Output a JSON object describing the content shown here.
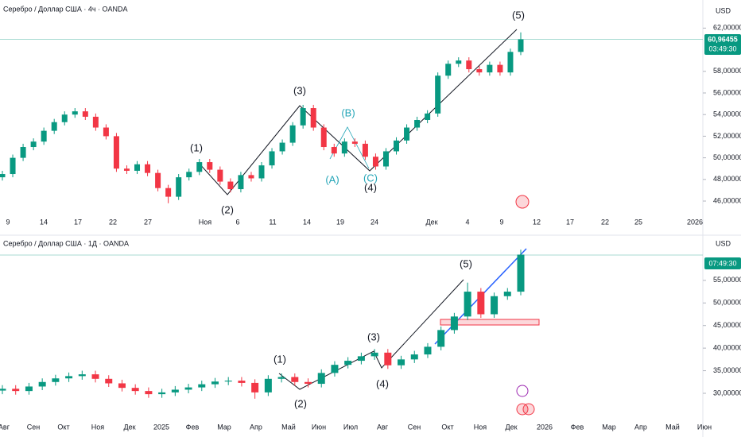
{
  "chart_data": [
    {
      "type": "candlestick",
      "title": "Серебро / Доллар США · 4ч · OANDA",
      "currency": "USD",
      "up_color": "#089981",
      "down_color": "#f23645",
      "open": [
        48.2,
        48.5,
        50,
        51,
        51.5,
        52.5,
        53.3,
        54,
        54.3,
        53.8,
        52.8,
        52,
        49,
        48.8,
        49.4,
        48.6,
        47.2,
        46.4,
        48.2,
        48.7,
        49.6,
        48.9,
        47.8,
        47.1,
        48.4,
        48.1,
        49.3,
        50.6,
        51.4,
        53,
        54.6,
        52.8,
        51,
        50.4,
        51.5,
        51.3,
        50.1,
        49.2,
        50.6,
        51.6,
        52.8,
        53.5,
        54.1,
        57.6,
        58.7,
        59,
        58.2,
        57.9,
        58.6,
        57.9,
        59.8
      ],
      "high": [
        48.8,
        50.3,
        51.3,
        51.8,
        52.8,
        53.6,
        54.3,
        54.6,
        54.6,
        54.1,
        53.1,
        52.3,
        49.3,
        49.7,
        49.7,
        48.9,
        47.5,
        48.5,
        49,
        49.9,
        49.9,
        49.2,
        48.1,
        48.7,
        48.7,
        49.6,
        50.9,
        51.7,
        53.3,
        54.9,
        54.9,
        53.1,
        51.3,
        51.8,
        51.8,
        51.6,
        50.4,
        50.9,
        51.9,
        53.1,
        53.8,
        54.4,
        57.9,
        59,
        59.3,
        59.3,
        58.5,
        58.9,
        58.9,
        60.1,
        61.6
      ],
      "low": [
        47.9,
        48.2,
        49.7,
        50.7,
        51.2,
        52.2,
        53,
        53.7,
        53.5,
        52.5,
        51.7,
        48.7,
        48.5,
        48.5,
        48.3,
        46.9,
        45.8,
        46.1,
        47.9,
        48.4,
        48.6,
        47.5,
        46.8,
        46.8,
        47.8,
        47.8,
        49,
        50.3,
        51.1,
        52.7,
        52.5,
        50.7,
        50.1,
        50.1,
        51,
        49.8,
        48.9,
        48.9,
        50.3,
        51.3,
        52.5,
        53.2,
        53.8,
        57.3,
        58.4,
        57.9,
        57.6,
        57.6,
        57.6,
        57.6,
        59.5
      ],
      "close": [
        48.5,
        50,
        51,
        51.5,
        52.5,
        53.3,
        54,
        54.3,
        53.8,
        52.8,
        52,
        49,
        48.8,
        49.4,
        48.6,
        47.2,
        46.4,
        48.2,
        48.7,
        49.6,
        48.9,
        47.8,
        47.1,
        48.4,
        48.1,
        49.3,
        50.6,
        51.4,
        53,
        54.6,
        52.8,
        51,
        50.4,
        51.5,
        51.3,
        50.1,
        49.2,
        50.6,
        51.6,
        52.8,
        53.5,
        54.1,
        57.6,
        58.7,
        59,
        58.2,
        57.9,
        58.6,
        57.9,
        59.8,
        60.96
      ],
      "ylim": [
        44.9,
        64.6
      ],
      "yticks": [
        {
          "value": 46,
          "label": "46,00000"
        },
        {
          "value": 48,
          "label": "48,00000"
        },
        {
          "value": 50,
          "label": "50,00000"
        },
        {
          "value": 52,
          "label": "52,00000"
        },
        {
          "value": 54,
          "label": "54,00000"
        },
        {
          "value": 56,
          "label": "56,00000"
        },
        {
          "value": 58,
          "label": "58,00000"
        },
        {
          "value": 62,
          "label": "62,00000"
        }
      ],
      "last_price": {
        "value": 60.96455,
        "label": "60,96455"
      },
      "countdown": "03:49:30",
      "x_labels": [
        "9",
        "14",
        "17",
        "22",
        "27",
        "Ноя",
        "6",
        "11",
        "14",
        "19",
        "24",
        "Дек",
        "4",
        "9",
        "12",
        "17",
        "22",
        "25",
        "2026"
      ],
      "annotations": [
        "(1)",
        "(2)",
        "(3)",
        "(4)",
        "(5)",
        "(A)",
        "(B)",
        "(C)"
      ]
    },
    {
      "type": "candlestick",
      "title": "Серебро / Доллар США · 1Д · OANDA",
      "currency": "USD",
      "up_color": "#089981",
      "down_color": "#f23645",
      "open": [
        30.6,
        31,
        30.5,
        31.5,
        32.5,
        33.3,
        33.8,
        34.2,
        33.2,
        32.2,
        31.2,
        30.5,
        29.8,
        30.2,
        30.8,
        31.3,
        32,
        32.6,
        32.8,
        32.3,
        30.2,
        33.2,
        33.6,
        32.5,
        32.1,
        34.5,
        36.3,
        37.2,
        38.2,
        39,
        36.2,
        37.5,
        38.6,
        40.3,
        44,
        47,
        52.5,
        47.5,
        51.5,
        52.5
      ],
      "high": [
        31.8,
        31.8,
        32.3,
        33.3,
        34.1,
        34.6,
        35,
        35,
        34,
        33,
        32,
        31.3,
        31,
        31.6,
        32.1,
        32.8,
        33.4,
        33.6,
        33.6,
        33.1,
        34,
        34.4,
        34.4,
        33.3,
        35.3,
        37.1,
        38,
        39,
        39.8,
        39.8,
        38.3,
        39.4,
        41.1,
        44.8,
        47.8,
        54.5,
        53.3,
        52.3,
        53.3,
        61.8
      ],
      "low": [
        29.8,
        29.7,
        29.7,
        30.7,
        31.7,
        32.5,
        33,
        32.4,
        31.4,
        30.4,
        29.7,
        29,
        29,
        29.4,
        30,
        30.5,
        31.2,
        31.8,
        31.5,
        28.8,
        29.4,
        32.4,
        31.7,
        31.3,
        31.3,
        33.7,
        35.5,
        36.4,
        37.4,
        35.4,
        35.4,
        36.7,
        37.8,
        39.5,
        43.2,
        46.2,
        46.7,
        46.7,
        50.7,
        51.7
      ],
      "close": [
        31,
        30.5,
        31.5,
        32.5,
        33.3,
        33.8,
        34.2,
        33.2,
        32.2,
        31.2,
        30.5,
        29.8,
        30.2,
        30.8,
        31.3,
        32,
        32.6,
        32.8,
        32.3,
        30.2,
        33.2,
        33.6,
        32.5,
        32.1,
        34.5,
        36.3,
        37.2,
        38.2,
        39,
        36.2,
        37.5,
        38.6,
        40.3,
        44,
        47,
        52.5,
        47.5,
        51.5,
        52.5,
        60.7
      ],
      "ylim": [
        25.6,
        64.3
      ],
      "yticks": [
        {
          "value": 30,
          "label": "30,00000"
        },
        {
          "value": 35,
          "label": "35,00000"
        },
        {
          "value": 40,
          "label": "40,00000"
        },
        {
          "value": 45,
          "label": "45,00000"
        },
        {
          "value": 50,
          "label": "50,00000"
        },
        {
          "value": 55,
          "label": "55,00000"
        }
      ],
      "countdown": "07:49:30",
      "x_labels": [
        "Авг",
        "Сен",
        "Окт",
        "Ноя",
        "Дек",
        "2025",
        "Фев",
        "Мар",
        "Апр",
        "Май",
        "Июн",
        "Июл",
        "Авг",
        "Сен",
        "Окт",
        "Ноя",
        "Дек",
        "2026",
        "Фев",
        "Мар",
        "Апр",
        "Май",
        "Июн"
      ],
      "annotations": [
        "(1)",
        "(2)",
        "(3)",
        "(4)",
        "(5)"
      ]
    }
  ]
}
